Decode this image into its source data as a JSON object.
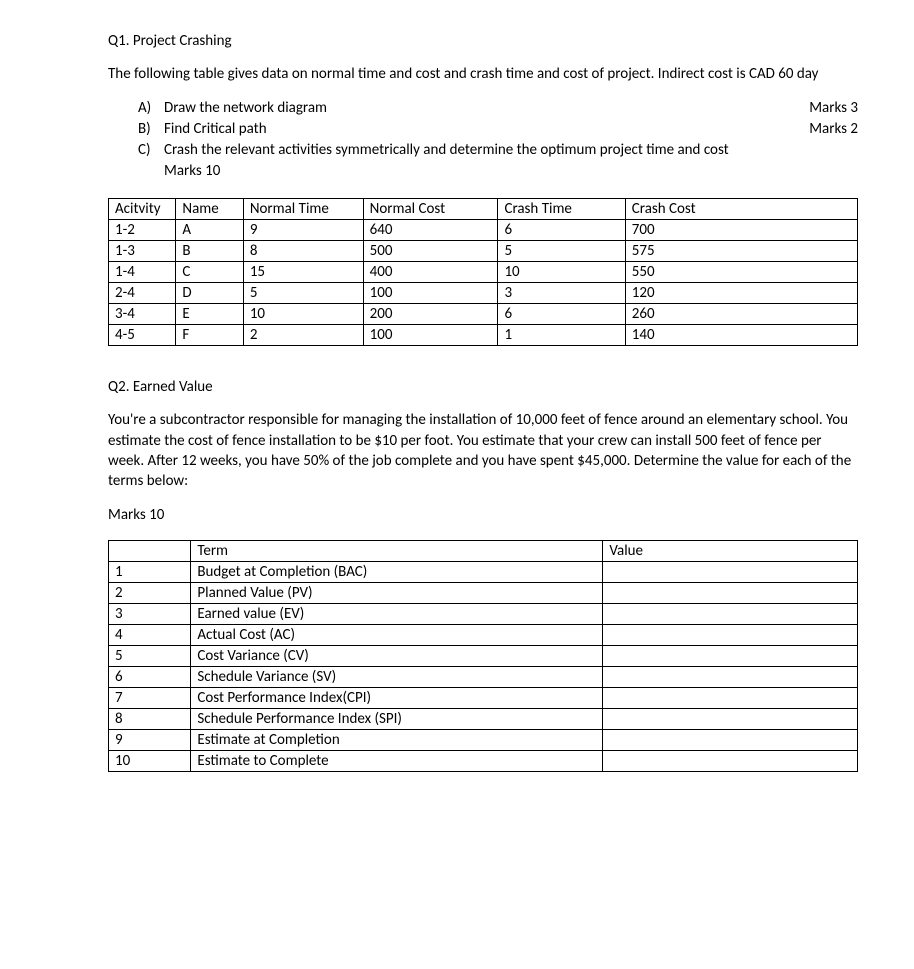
{
  "q1": {
    "title": "Q1. Project Crashing",
    "intro": "The following table gives data on normal time and cost and crash time and cost of project. Indirect cost is CAD 60 day",
    "parts": [
      {
        "letter": "A)",
        "text": "Draw the network diagram",
        "marks": "Marks 3",
        "inline_marks": true
      },
      {
        "letter": "B)",
        "text": "Find Critical path",
        "marks": "Marks 2",
        "inline_marks": true
      },
      {
        "letter": "C)",
        "text": "Crash the relevant activities symmetrically and determine the optimum project time and cost",
        "marks": "Marks 10",
        "inline_marks": false
      }
    ],
    "table": {
      "headers": [
        "Acitvity",
        "Name",
        "Normal Time",
        "Normal Cost",
        "Crash Time",
        "Crash Cost"
      ],
      "rows": [
        [
          "1-2",
          "A",
          "9",
          "640",
          "6",
          "700"
        ],
        [
          "1-3",
          "B",
          "8",
          "500",
          "5",
          "575"
        ],
        [
          "1-4",
          "C",
          "15",
          "400",
          "10",
          "550"
        ],
        [
          "2-4",
          "D",
          "5",
          "100",
          "3",
          "120"
        ],
        [
          "3-4",
          "E",
          "10",
          "200",
          "6",
          "260"
        ],
        [
          "4-5",
          "F",
          "2",
          "100",
          "1",
          "140"
        ]
      ]
    }
  },
  "q2": {
    "title": "Q2. Earned Value",
    "intro": "You're a subcontractor responsible for managing the installation of 10,000 feet of fence around an elementary school. You estimate the cost of fence installation to be $10 per foot. You estimate that your crew can install 500 feet of fence per week. After 12 weeks, you have 50% of the job complete and you have spent $45,000. Determine the value for each of the terms below:",
    "marks": "Marks 10",
    "table": {
      "headers": [
        "",
        "Term",
        "Value"
      ],
      "rows": [
        [
          "1",
          "Budget at Completion (BAC)",
          ""
        ],
        [
          "2",
          "Planned Value (PV)",
          ""
        ],
        [
          "3",
          "Earned value (EV)",
          ""
        ],
        [
          "4",
          "Actual Cost (AC)",
          ""
        ],
        [
          "5",
          "Cost Variance (CV)",
          ""
        ],
        [
          "6",
          "Schedule Variance (SV)",
          ""
        ],
        [
          "7",
          "Cost Performance Index(CPI)",
          ""
        ],
        [
          "8",
          "Schedule Performance Index (SPI)",
          ""
        ],
        [
          "9",
          "Estimate at Completion",
          ""
        ],
        [
          "10",
          "Estimate to Complete",
          ""
        ]
      ]
    }
  }
}
